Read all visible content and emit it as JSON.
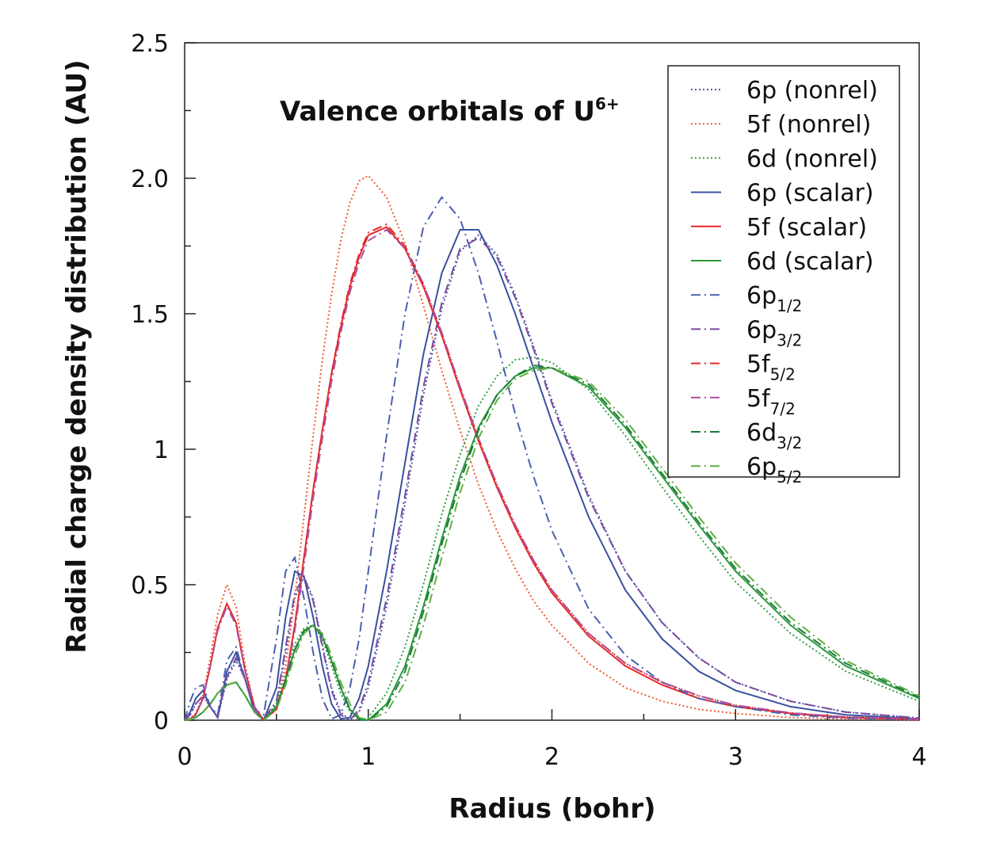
{
  "chart_data": {
    "type": "line",
    "title": "Valence orbitals of U",
    "title_sup": "6+",
    "xlabel": "Radius (bohr)",
    "ylabel": "Radial charge density distribution (AU)",
    "xlim": [
      0,
      4
    ],
    "ylim": [
      0,
      2.5
    ],
    "xticks": [
      0,
      1,
      2,
      3,
      4
    ],
    "xticks_minor": [
      0.5,
      1.5,
      2.5,
      3.5
    ],
    "yticks": [
      0,
      0.5,
      1,
      1.5,
      {
        "value": 2,
        "label": "2.0"
      },
      2.5
    ],
    "yticks_labels_override": null,
    "yticks_minor": [
      0.25,
      0.75,
      1.25,
      1.75,
      2.25
    ],
    "x": [
      0,
      0.03,
      0.06,
      0.1,
      0.14,
      0.18,
      0.23,
      0.28,
      0.33,
      0.38,
      0.43,
      0.5,
      0.55,
      0.6,
      0.65,
      0.7,
      0.75,
      0.8,
      0.85,
      0.9,
      0.95,
      1.0,
      1.1,
      1.2,
      1.3,
      1.4,
      1.5,
      1.6,
      1.7,
      1.8,
      1.9,
      2.0,
      2.2,
      2.4,
      2.6,
      2.8,
      3.0,
      3.3,
      3.6,
      4.0
    ],
    "series": [
      {
        "name": "6p (nonrel)",
        "color": "#4a5aa8",
        "dash": "dotted",
        "values": [
          0,
          0.02,
          0.06,
          0.09,
          0.05,
          0.01,
          0.15,
          0.22,
          0.15,
          0.04,
          0.005,
          0.06,
          0.25,
          0.45,
          0.53,
          0.45,
          0.28,
          0.12,
          0.03,
          0.0,
          0.03,
          0.12,
          0.42,
          0.8,
          1.2,
          1.52,
          1.73,
          1.79,
          1.72,
          1.57,
          1.38,
          1.18,
          0.83,
          0.55,
          0.36,
          0.23,
          0.14,
          0.07,
          0.03,
          0.008
        ]
      },
      {
        "name": "5f (nonrel)",
        "color": "#f05a30",
        "dash": "dotted",
        "values": [
          0,
          0.006,
          0.025,
          0.09,
          0.23,
          0.39,
          0.5,
          0.42,
          0.2,
          0.05,
          0.0,
          0.05,
          0.2,
          0.45,
          0.75,
          1.05,
          1.33,
          1.57,
          1.77,
          1.91,
          1.99,
          2.01,
          1.93,
          1.76,
          1.53,
          1.29,
          1.07,
          0.87,
          0.7,
          0.56,
          0.44,
          0.35,
          0.21,
          0.12,
          0.07,
          0.04,
          0.025,
          0.01,
          0.004,
          0.001
        ]
      },
      {
        "name": "6d (nonrel)",
        "color": "#2ea040",
        "dash": "dotted",
        "values": [
          0,
          0.003,
          0.01,
          0.03,
          0.06,
          0.1,
          0.13,
          0.14,
          0.09,
          0.03,
          0.0,
          0.06,
          0.17,
          0.28,
          0.34,
          0.35,
          0.3,
          0.2,
          0.1,
          0.03,
          0.0,
          0.01,
          0.1,
          0.27,
          0.5,
          0.76,
          0.98,
          1.16,
          1.27,
          1.33,
          1.34,
          1.32,
          1.22,
          1.05,
          0.86,
          0.68,
          0.51,
          0.32,
          0.18,
          0.07
        ]
      },
      {
        "name": "6p (scalar)",
        "color": "#3a50a0",
        "dash": "solid",
        "values": [
          0,
          0.03,
          0.08,
          0.11,
          0.05,
          0.01,
          0.18,
          0.25,
          0.15,
          0.03,
          0.0,
          0.12,
          0.38,
          0.55,
          0.53,
          0.38,
          0.2,
          0.06,
          0.005,
          0.01,
          0.08,
          0.2,
          0.55,
          0.95,
          1.35,
          1.65,
          1.81,
          1.81,
          1.68,
          1.5,
          1.3,
          1.1,
          0.75,
          0.48,
          0.3,
          0.18,
          0.11,
          0.05,
          0.02,
          0.005
        ]
      },
      {
        "name": "5f (scalar)",
        "color": "#e8282a",
        "dash": "solid",
        "values": [
          0,
          0.005,
          0.02,
          0.08,
          0.2,
          0.34,
          0.43,
          0.36,
          0.18,
          0.05,
          0.0,
          0.04,
          0.15,
          0.35,
          0.6,
          0.85,
          1.07,
          1.28,
          1.45,
          1.6,
          1.71,
          1.79,
          1.82,
          1.74,
          1.6,
          1.42,
          1.22,
          1.03,
          0.86,
          0.71,
          0.58,
          0.47,
          0.31,
          0.2,
          0.13,
          0.08,
          0.05,
          0.025,
          0.01,
          0.003
        ]
      },
      {
        "name": "6d (scalar)",
        "color": "#2a9a3a",
        "dash": "solid",
        "values": [
          0,
          0.003,
          0.01,
          0.03,
          0.06,
          0.1,
          0.13,
          0.14,
          0.09,
          0.03,
          0.0,
          0.05,
          0.15,
          0.26,
          0.33,
          0.35,
          0.31,
          0.22,
          0.12,
          0.04,
          0.005,
          0.0,
          0.06,
          0.2,
          0.42,
          0.67,
          0.9,
          1.08,
          1.2,
          1.27,
          1.3,
          1.3,
          1.23,
          1.08,
          0.9,
          0.72,
          0.55,
          0.35,
          0.2,
          0.08
        ]
      },
      {
        "name": "6p",
        "name_sub": "1/2",
        "color": "#4a60b0",
        "dash": "dashdot",
        "values": [
          0,
          0.07,
          0.12,
          0.13,
          0.05,
          0.02,
          0.22,
          0.27,
          0.15,
          0.04,
          0.02,
          0.3,
          0.55,
          0.6,
          0.45,
          0.25,
          0.08,
          0.005,
          0.02,
          0.12,
          0.3,
          0.55,
          1.05,
          1.5,
          1.82,
          1.93,
          1.85,
          1.65,
          1.4,
          1.13,
          0.9,
          0.7,
          0.41,
          0.24,
          0.14,
          0.08,
          0.05,
          0.02,
          0.008,
          0.002
        ]
      },
      {
        "name": "6p",
        "name_sub": "3/2",
        "color": "#7a4aa0",
        "dash": "dashdot",
        "values": [
          0,
          0.02,
          0.06,
          0.09,
          0.05,
          0.01,
          0.16,
          0.23,
          0.15,
          0.04,
          0.005,
          0.07,
          0.27,
          0.47,
          0.53,
          0.44,
          0.27,
          0.11,
          0.02,
          0.0,
          0.04,
          0.14,
          0.45,
          0.83,
          1.23,
          1.54,
          1.74,
          1.78,
          1.71,
          1.56,
          1.37,
          1.17,
          0.82,
          0.55,
          0.36,
          0.23,
          0.14,
          0.07,
          0.03,
          0.008
        ]
      },
      {
        "name": "5f",
        "name_sub": "5/2",
        "color": "#e02a2a",
        "dash": "dashdot",
        "values": [
          0,
          0.005,
          0.02,
          0.08,
          0.2,
          0.34,
          0.43,
          0.36,
          0.18,
          0.05,
          0.0,
          0.04,
          0.15,
          0.35,
          0.6,
          0.85,
          1.07,
          1.28,
          1.46,
          1.61,
          1.72,
          1.8,
          1.83,
          1.75,
          1.61,
          1.43,
          1.23,
          1.04,
          0.87,
          0.72,
          0.59,
          0.48,
          0.32,
          0.21,
          0.14,
          0.09,
          0.055,
          0.027,
          0.012,
          0.004
        ]
      },
      {
        "name": "5f",
        "name_sub": "7/2",
        "color": "#b050a0",
        "dash": "dashdot",
        "values": [
          0,
          0.005,
          0.02,
          0.08,
          0.2,
          0.33,
          0.42,
          0.35,
          0.18,
          0.05,
          0.0,
          0.04,
          0.14,
          0.33,
          0.57,
          0.82,
          1.04,
          1.25,
          1.43,
          1.58,
          1.69,
          1.77,
          1.81,
          1.74,
          1.61,
          1.43,
          1.23,
          1.04,
          0.87,
          0.72,
          0.59,
          0.48,
          0.32,
          0.21,
          0.14,
          0.09,
          0.055,
          0.027,
          0.012,
          0.004
        ]
      },
      {
        "name": "6d",
        "name_sub": "3/2",
        "color": "#1a7a3a",
        "dash": "dashdot",
        "values": [
          0,
          0.003,
          0.01,
          0.03,
          0.06,
          0.1,
          0.13,
          0.14,
          0.09,
          0.03,
          0.0,
          0.05,
          0.15,
          0.26,
          0.33,
          0.35,
          0.31,
          0.22,
          0.12,
          0.04,
          0.005,
          0.0,
          0.05,
          0.18,
          0.4,
          0.65,
          0.88,
          1.07,
          1.2,
          1.27,
          1.31,
          1.3,
          1.24,
          1.09,
          0.91,
          0.73,
          0.56,
          0.36,
          0.21,
          0.085
        ]
      },
      {
        "name": "6p",
        "name_sub": "5/2",
        "color": "#60b040",
        "dash": "dashdot",
        "values": [
          0,
          0.003,
          0.01,
          0.03,
          0.06,
          0.1,
          0.13,
          0.14,
          0.09,
          0.03,
          0.0,
          0.04,
          0.13,
          0.24,
          0.32,
          0.35,
          0.32,
          0.24,
          0.14,
          0.06,
          0.01,
          0.0,
          0.03,
          0.14,
          0.35,
          0.6,
          0.84,
          1.04,
          1.18,
          1.26,
          1.29,
          1.3,
          1.25,
          1.11,
          0.93,
          0.75,
          0.58,
          0.38,
          0.22,
          0.09
        ]
      }
    ]
  }
}
